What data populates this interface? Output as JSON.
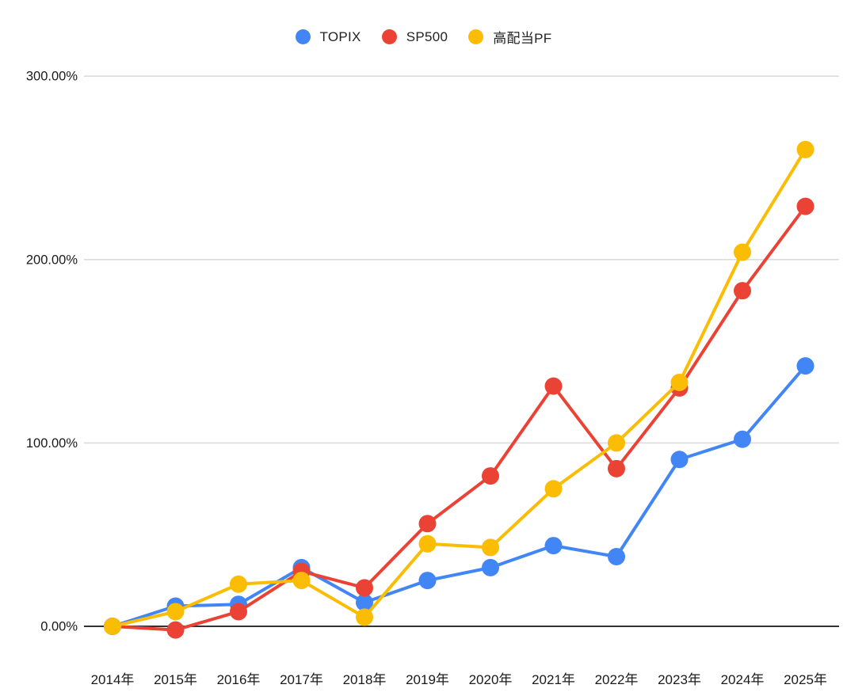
{
  "legend": {
    "items": [
      {
        "label": "TOPIX",
        "color": "#4285F4"
      },
      {
        "label": "SP500",
        "color": "#EA4335"
      },
      {
        "label": "高配当PF",
        "color": "#FBBC04"
      }
    ]
  },
  "chart_data": {
    "type": "line",
    "title": "",
    "unit": "%",
    "categories": [
      "2014年",
      "2015年",
      "2016年",
      "2017年",
      "2018年",
      "2019年",
      "2020年",
      "2021年",
      "2022年",
      "2023年",
      "2024年",
      "2025年"
    ],
    "series": [
      {
        "name": "TOPIX",
        "color": "#4285F4",
        "values": [
          0,
          11,
          12,
          32,
          13,
          25,
          32,
          44,
          38,
          91,
          102,
          142
        ]
      },
      {
        "name": "SP500",
        "color": "#EA4335",
        "values": [
          0,
          -2,
          8,
          30,
          21,
          56,
          82,
          131,
          86,
          130,
          183,
          229
        ]
      },
      {
        "name": "高配当PF",
        "color": "#FBBC04",
        "values": [
          0,
          8,
          23,
          25,
          5,
          45,
          43,
          75,
          100,
          133,
          204,
          260
        ]
      }
    ],
    "y_axis": {
      "tick_labels": [
        "0.00%",
        "100.00%",
        "200.00%",
        "300.00%"
      ],
      "tick_values": [
        0,
        100,
        200,
        300
      ],
      "range_shown": [
        -10,
        300
      ]
    },
    "grid": true,
    "legend_position": "top",
    "colors": {
      "background": "#ffffff",
      "gridline": "#dcdcdc",
      "zero_axis": "#333333",
      "label_text": "#1a1a1a"
    }
  }
}
